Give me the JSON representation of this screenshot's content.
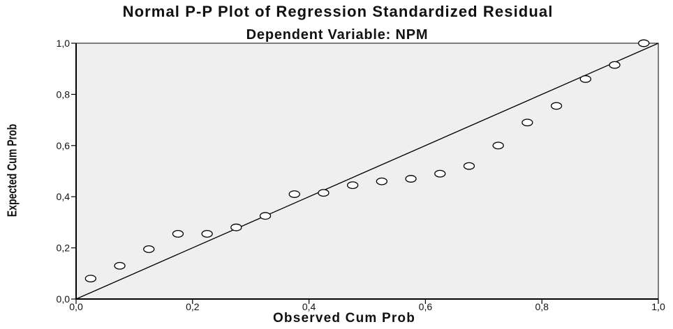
{
  "chart_data": {
    "type": "scatter",
    "title": "Normal P-P Plot of Regression Standardized Residual",
    "subtitle": "Dependent Variable: NPM",
    "xlabel": "Observed Cum Prob",
    "ylabel": "Expected Cum Prob",
    "xlim": [
      0,
      1
    ],
    "ylim": [
      0,
      1
    ],
    "x_ticks": [
      "0,0",
      "0,2",
      "0,4",
      "0,6",
      "0,8",
      "1,0"
    ],
    "y_ticks": [
      "0,0",
      "0,2",
      "0,4",
      "0,6",
      "0,8",
      "1,0"
    ],
    "reference_line": [
      [
        0,
        0
      ],
      [
        1,
        1
      ]
    ],
    "points": [
      {
        "x": 0.025,
        "y": 0.08
      },
      {
        "x": 0.075,
        "y": 0.13
      },
      {
        "x": 0.125,
        "y": 0.195
      },
      {
        "x": 0.175,
        "y": 0.255
      },
      {
        "x": 0.225,
        "y": 0.255
      },
      {
        "x": 0.275,
        "y": 0.28
      },
      {
        "x": 0.325,
        "y": 0.325
      },
      {
        "x": 0.375,
        "y": 0.41
      },
      {
        "x": 0.425,
        "y": 0.415
      },
      {
        "x": 0.475,
        "y": 0.445
      },
      {
        "x": 0.525,
        "y": 0.46
      },
      {
        "x": 0.575,
        "y": 0.47
      },
      {
        "x": 0.625,
        "y": 0.49
      },
      {
        "x": 0.675,
        "y": 0.52
      },
      {
        "x": 0.725,
        "y": 0.6
      },
      {
        "x": 0.775,
        "y": 0.69
      },
      {
        "x": 0.825,
        "y": 0.755
      },
      {
        "x": 0.875,
        "y": 0.86
      },
      {
        "x": 0.925,
        "y": 0.915
      },
      {
        "x": 0.975,
        "y": 1.0
      }
    ],
    "grid": false,
    "legend": "none",
    "colors": {
      "plot_background": "#efefef",
      "axis": "#000000",
      "reference_line": "#000000",
      "marker_stroke": "#000000",
      "marker_fill": "#ffffff",
      "text": "#111111"
    }
  }
}
